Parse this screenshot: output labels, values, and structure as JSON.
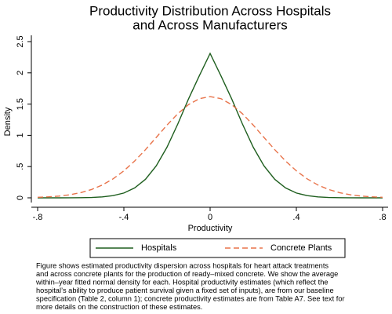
{
  "chart_data": {
    "type": "line",
    "title": [
      "Productivity Distribution Across Hospitals",
      "and Across Manufacturers"
    ],
    "xlabel": "Productivity",
    "ylabel": "Density",
    "x": [
      -0.8,
      -0.75,
      -0.7,
      -0.65,
      -0.6,
      -0.55,
      -0.5,
      -0.45,
      -0.4,
      -0.35,
      -0.3,
      -0.25,
      -0.2,
      -0.15,
      -0.1,
      -0.05,
      0,
      0.05,
      0.1,
      0.15,
      0.2,
      0.25,
      0.3,
      0.35,
      0.4,
      0.45,
      0.5,
      0.55,
      0.6,
      0.65,
      0.7,
      0.75,
      0.8
    ],
    "series": [
      {
        "name": "Hospitals",
        "color": "#1e5e1e",
        "dash": false,
        "values": [
          0,
          0,
          0,
          0.001,
          0.002,
          0.006,
          0.015,
          0.035,
          0.077,
          0.158,
          0.296,
          0.511,
          0.81,
          1.181,
          1.584,
          1.954,
          2.31,
          1.954,
          1.584,
          1.181,
          0.81,
          0.511,
          0.296,
          0.158,
          0.077,
          0.035,
          0.015,
          0.006,
          0.002,
          0.001,
          0,
          0,
          0
        ]
      },
      {
        "name": "Concrete Plants",
        "color": "#e8734a",
        "dash": true,
        "values": [
          0.008,
          0.016,
          0.028,
          0.049,
          0.083,
          0.133,
          0.205,
          0.304,
          0.432,
          0.589,
          0.77,
          0.966,
          1.164,
          1.345,
          1.492,
          1.587,
          1.62,
          1.587,
          1.492,
          1.345,
          1.164,
          0.966,
          0.77,
          0.589,
          0.432,
          0.304,
          0.205,
          0.133,
          0.083,
          0.049,
          0.028,
          0.016,
          0.008
        ]
      }
    ],
    "xlim": [
      -0.8,
      0.8
    ],
    "xticks": [
      {
        "value": -0.8,
        "label": "-.8"
      },
      {
        "value": -0.4,
        "label": "-.4"
      },
      0,
      {
        "value": 0.4,
        "label": ".4"
      },
      {
        "value": 0.8,
        "label": ".8"
      }
    ],
    "ylim": [
      0,
      2.5
    ],
    "yticks": [
      0,
      {
        "value": 0.5,
        "label": ".5"
      },
      1,
      1.5,
      2,
      2.5
    ],
    "caption": [
      "Figure shows estimated productivity dispersion across hospitals for heart attack treatments",
      "and across concrete plants for the production of ready–mixed concrete. We show the average",
      "within–year fitted normal density for each. Hospital productivity estimates (which reflect the",
      "hospital’s ability to produce patient survival given a fixed set of inputs), are from our baseline",
      "specification (Table 2, column 1); concrete productivity estimates are from Table A7. See text for",
      "more details on the construction of these estimates."
    ]
  }
}
